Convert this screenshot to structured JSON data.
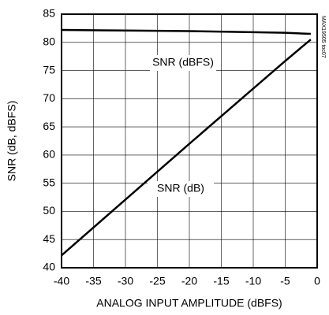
{
  "chart_data": {
    "type": "line",
    "x": [
      -40,
      -30,
      -20,
      -10,
      -5,
      -1
    ],
    "series": [
      {
        "name": "SNR (dBFS)",
        "color": "#000000",
        "values": [
          82.2,
          82.1,
          82.0,
          81.8,
          81.7,
          81.5
        ]
      },
      {
        "name": "SNR (dB)",
        "color": "#000000",
        "values": [
          42.2,
          52.1,
          62.0,
          71.8,
          76.7,
          80.5
        ]
      }
    ],
    "xlabel": "ANALOG INPUT AMPLITUDE (dBFS)",
    "ylabel": "SNR (dB, dBFS)",
    "xlim": [
      -40,
      0
    ],
    "xticks": [
      -40,
      -35,
      -30,
      -25,
      -20,
      -15,
      -10,
      -5,
      0
    ],
    "ylim": [
      40,
      85
    ],
    "yticks": [
      40,
      45,
      50,
      55,
      60,
      65,
      70,
      75,
      80,
      85
    ],
    "grid": true,
    "watermark": "MAX19505 toc07"
  }
}
